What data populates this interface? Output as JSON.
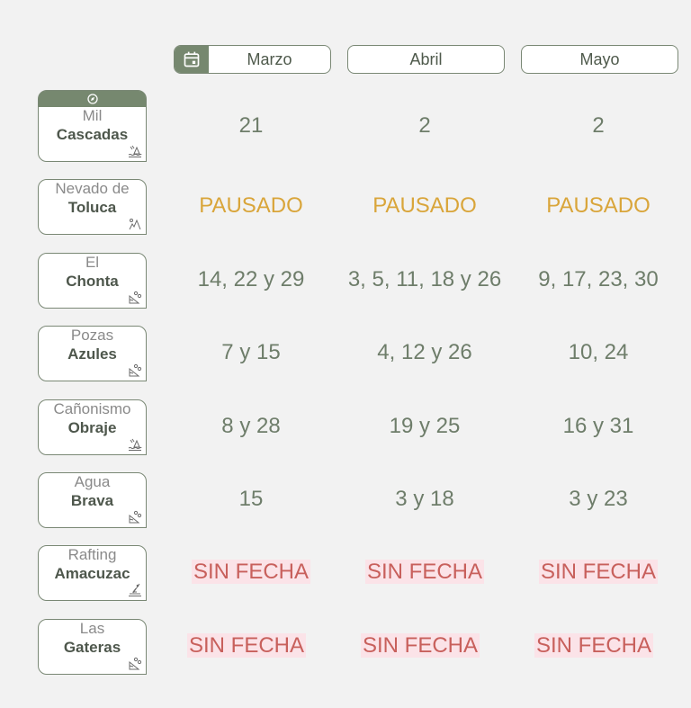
{
  "months": [
    {
      "label": "Marzo",
      "icon": "calendar-icon"
    },
    {
      "label": "Abril"
    },
    {
      "label": "Mayo"
    }
  ],
  "colors": {
    "accent": "#76886f",
    "date_text": "#6e7d6a",
    "paused": "#d9a53a",
    "no_date": "#c8605c",
    "no_date_bg": "#fbe3e8"
  },
  "rows": [
    {
      "line1": "Mil",
      "line2": "Cascadas",
      "icon": "waterfall-icon",
      "header_icon": "compass-icon",
      "values": [
        "21",
        "2",
        "2"
      ],
      "status": "date"
    },
    {
      "line1": "Nevado de",
      "line2": "Toluca",
      "icon": "hiking-mountain-icon",
      "values": [
        "PAUSADO",
        "PAUSADO",
        "PAUSADO"
      ],
      "status": "paused"
    },
    {
      "line1": "El",
      "line2": "Chonta",
      "icon": "landslide-icon",
      "values": [
        "14, 22 y 29",
        "3, 5, 11, 18 y 26",
        "9, 17, 23, 30"
      ],
      "status": "date"
    },
    {
      "line1": "Pozas",
      "line2": "Azules",
      "icon": "landslide-icon",
      "values": [
        "7 y 15",
        "4, 12 y 26",
        "10, 24"
      ],
      "status": "date"
    },
    {
      "line1": "Cañonismo",
      "line2": "Obraje",
      "icon": "waterfall-icon",
      "values": [
        "8 y 28",
        "19 y 25",
        "16 y 31"
      ],
      "status": "date"
    },
    {
      "line1": "Agua",
      "line2": "Brava",
      "icon": "landslide-icon",
      "values": [
        "15",
        "3 y 18",
        "3 y 23"
      ],
      "status": "date"
    },
    {
      "line1": "Rafting",
      "line2": "Amacuzac",
      "icon": "kayaking-icon",
      "values": [
        "SIN FECHA",
        "SIN FECHA",
        "SIN FECHA"
      ],
      "status": "none"
    },
    {
      "line1": "Las",
      "line2": "Gateras",
      "icon": "landslide-icon",
      "values": [
        "SIN FECHA",
        "SIN FECHA",
        "SIN FECHA"
      ],
      "status": "none"
    }
  ]
}
